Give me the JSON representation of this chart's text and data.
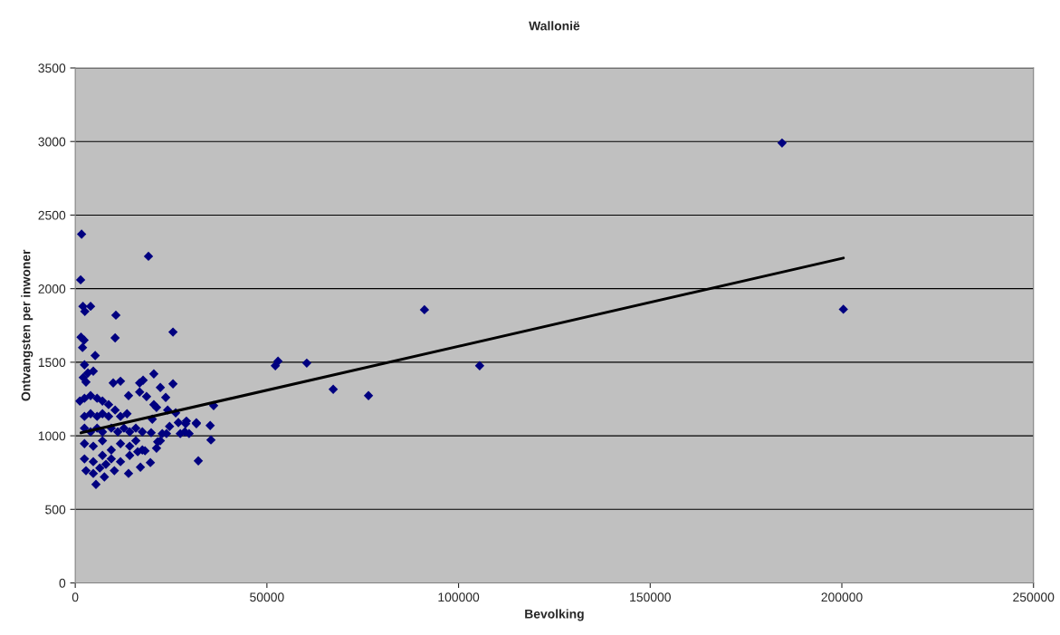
{
  "chart_data": {
    "type": "scatter",
    "title": "Wallonië",
    "xlabel": "Bevolking",
    "ylabel": "Ontvangsten per inwoner",
    "xlim": [
      0,
      250000
    ],
    "xticks": [
      0,
      50000,
      100000,
      150000,
      200000,
      250000
    ],
    "ylim": [
      0,
      3500
    ],
    "yticks": [
      0,
      500,
      1000,
      1500,
      2000,
      2500,
      3000,
      3500
    ],
    "grid": "y",
    "legend": false,
    "marker": "diamond",
    "series": [
      {
        "color": "#000080",
        "x": [
          184400,
          200400,
          1650,
          19100,
          1400,
          2000,
          2500,
          4000,
          10600,
          10400,
          1500,
          2300,
          1900,
          5200,
          25500,
          91100,
          52200,
          52900,
          60400,
          67300,
          76500,
          105500,
          36100,
          35400,
          35200,
          32100,
          31600,
          29000,
          29700,
          26900,
          20500,
          22200,
          23600,
          25500,
          17700,
          16800,
          16800,
          18600,
          13900,
          9900,
          11800,
          20500,
          21200,
          24100,
          26200,
          20100,
          24600,
          28800,
          31600,
          19800,
          22700,
          23800,
          27400,
          28600,
          21500,
          22200,
          21200,
          16300,
          18200,
          19600,
          17000,
          13900,
          5400,
          7600,
          2100,
          3300,
          4700,
          2800,
          2400,
          1200,
          2400,
          4000,
          5700,
          7100,
          8700,
          2400,
          4000,
          5700,
          7100,
          8700,
          10400,
          11800,
          13500,
          2400,
          4000,
          5700,
          7100,
          9400,
          11100,
          12700,
          14200,
          15800,
          17500,
          2400,
          4700,
          7100,
          9400,
          11800,
          14200,
          15800,
          17500,
          2400,
          4700,
          7100,
          9400,
          11800,
          14200,
          2800,
          4700,
          6400,
          8000,
          10200
        ],
        "values": [
          2990,
          1860,
          2370,
          2220,
          2060,
          1880,
          1845,
          1880,
          1820,
          1665,
          1670,
          1650,
          1600,
          1545,
          1705,
          1857,
          1476,
          1507,
          1494,
          1316,
          1273,
          1476,
          1205,
          972,
          1070,
          830,
          1089,
          1100,
          1015,
          1090,
          1421,
          1328,
          1261,
          1353,
          1378,
          1359,
          1298,
          1267,
          1273,
          1359,
          1371,
          1212,
          1193,
          1175,
          1156,
          1113,
          1064,
          1082,
          1082,
          1021,
          1015,
          1015,
          1015,
          1027,
          959,
          966,
          916,
          892,
          898,
          818,
          787,
          744,
          670,
          720,
          1396,
          1427,
          1439,
          1365,
          1482,
          1236,
          1255,
          1273,
          1255,
          1236,
          1212,
          1132,
          1150,
          1132,
          1150,
          1132,
          1175,
          1132,
          1150,
          1052,
          1027,
          1052,
          1027,
          1052,
          1027,
          1052,
          1027,
          1052,
          1027,
          947,
          929,
          966,
          904,
          947,
          929,
          966,
          904,
          843,
          824,
          867,
          843,
          824,
          867,
          763,
          744,
          781,
          806,
          763
        ]
      },
      {
        "type": "line",
        "marker": "none",
        "color": "#000000",
        "x": [
          1500,
          200400
        ],
        "values": [
          1020,
          2208
        ]
      }
    ]
  }
}
